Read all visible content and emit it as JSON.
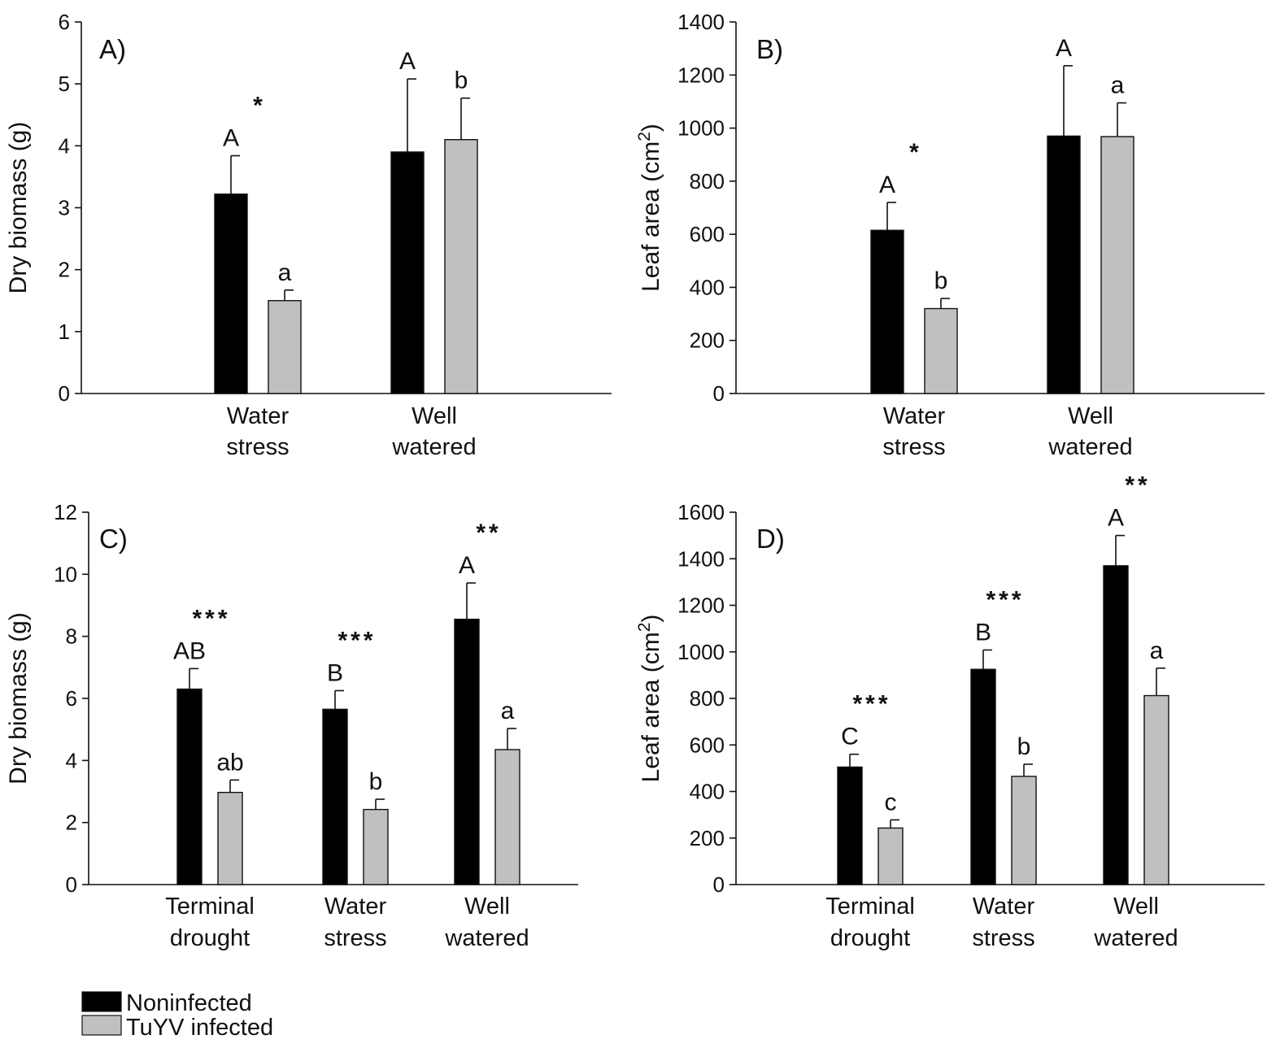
{
  "colors": {
    "noninfected": "#000000",
    "infected": "#c0c0c0",
    "axis": "#111111"
  },
  "legend": [
    {
      "label": "Noninfected",
      "color": "#000000"
    },
    {
      "label": "TuYV infected",
      "color": "#c0c0c0"
    }
  ],
  "chart_data": [
    {
      "type": "bar",
      "panel_label": "A)",
      "ylabel": "Dry biomass (g)",
      "ylim": [
        0,
        6
      ],
      "yticks": [
        "0",
        "1",
        "2",
        "3",
        "4",
        "5",
        "6"
      ],
      "categories": [
        [
          "Water",
          "stress"
        ],
        [
          "Well",
          "watered"
        ]
      ],
      "series": [
        {
          "name": "Noninfected",
          "values": [
            3.22,
            3.9
          ],
          "errors": [
            0.62,
            1.18
          ]
        },
        {
          "name": "TuYV infected",
          "values": [
            1.5,
            4.1
          ],
          "errors": [
            0.17,
            0.67
          ]
        }
      ],
      "letters_noninfected": [
        "A",
        "A"
      ],
      "letters_infected": [
        "a",
        "b"
      ],
      "significance": [
        "*",
        ""
      ]
    },
    {
      "type": "bar",
      "panel_label": "B)",
      "ylabel": "Leaf area (cm2)",
      "ylim": [
        0,
        1400
      ],
      "yticks": [
        "0",
        "200",
        "400",
        "600",
        "800",
        "1000",
        "1200",
        "1400"
      ],
      "categories": [
        [
          "Water",
          "stress"
        ],
        [
          "Well",
          "watered"
        ]
      ],
      "series": [
        {
          "name": "Noninfected",
          "values": [
            615,
            970
          ],
          "errors": [
            105,
            265
          ]
        },
        {
          "name": "TuYV infected",
          "values": [
            320,
            968
          ],
          "errors": [
            38,
            127
          ]
        }
      ],
      "letters_noninfected": [
        "A",
        "A"
      ],
      "letters_infected": [
        "b",
        "a"
      ],
      "significance": [
        "*",
        ""
      ]
    },
    {
      "type": "bar",
      "panel_label": "C)",
      "ylabel": "Dry biomass (g)",
      "ylim": [
        0,
        12
      ],
      "yticks": [
        "0",
        "2",
        "4",
        "6",
        "8",
        "10",
        "12"
      ],
      "categories": [
        [
          "Terminal",
          "drought"
        ],
        [
          "Water",
          "stress"
        ],
        [
          "Well",
          "watered"
        ]
      ],
      "series": [
        {
          "name": "Noninfected",
          "values": [
            6.3,
            5.65,
            8.55
          ],
          "errors": [
            0.66,
            0.6,
            1.17
          ]
        },
        {
          "name": "TuYV infected",
          "values": [
            2.97,
            2.42,
            4.35
          ],
          "errors": [
            0.4,
            0.33,
            0.68
          ]
        }
      ],
      "letters_noninfected": [
        "AB",
        "B",
        "A"
      ],
      "letters_infected": [
        "ab",
        "b",
        "a"
      ],
      "significance": [
        "***",
        "***",
        "**"
      ]
    },
    {
      "type": "bar",
      "panel_label": "D)",
      "ylabel": "Leaf area (cm2)",
      "ylim": [
        0,
        1600
      ],
      "yticks": [
        "0",
        "200",
        "400",
        "600",
        "800",
        "1000",
        "1200",
        "1400",
        "1600"
      ],
      "categories": [
        [
          "Terminal",
          "drought"
        ],
        [
          "Water",
          "stress"
        ],
        [
          "Well",
          "watered"
        ]
      ],
      "series": [
        {
          "name": "Noninfected",
          "values": [
            505,
            925,
            1370
          ],
          "errors": [
            55,
            83,
            130
          ]
        },
        {
          "name": "TuYV infected",
          "values": [
            243,
            465,
            812
          ],
          "errors": [
            35,
            52,
            118
          ]
        }
      ],
      "letters_noninfected": [
        "C",
        "B",
        "A"
      ],
      "letters_infected": [
        "c",
        "b",
        "a"
      ],
      "significance": [
        "***",
        "***",
        "**"
      ]
    }
  ]
}
